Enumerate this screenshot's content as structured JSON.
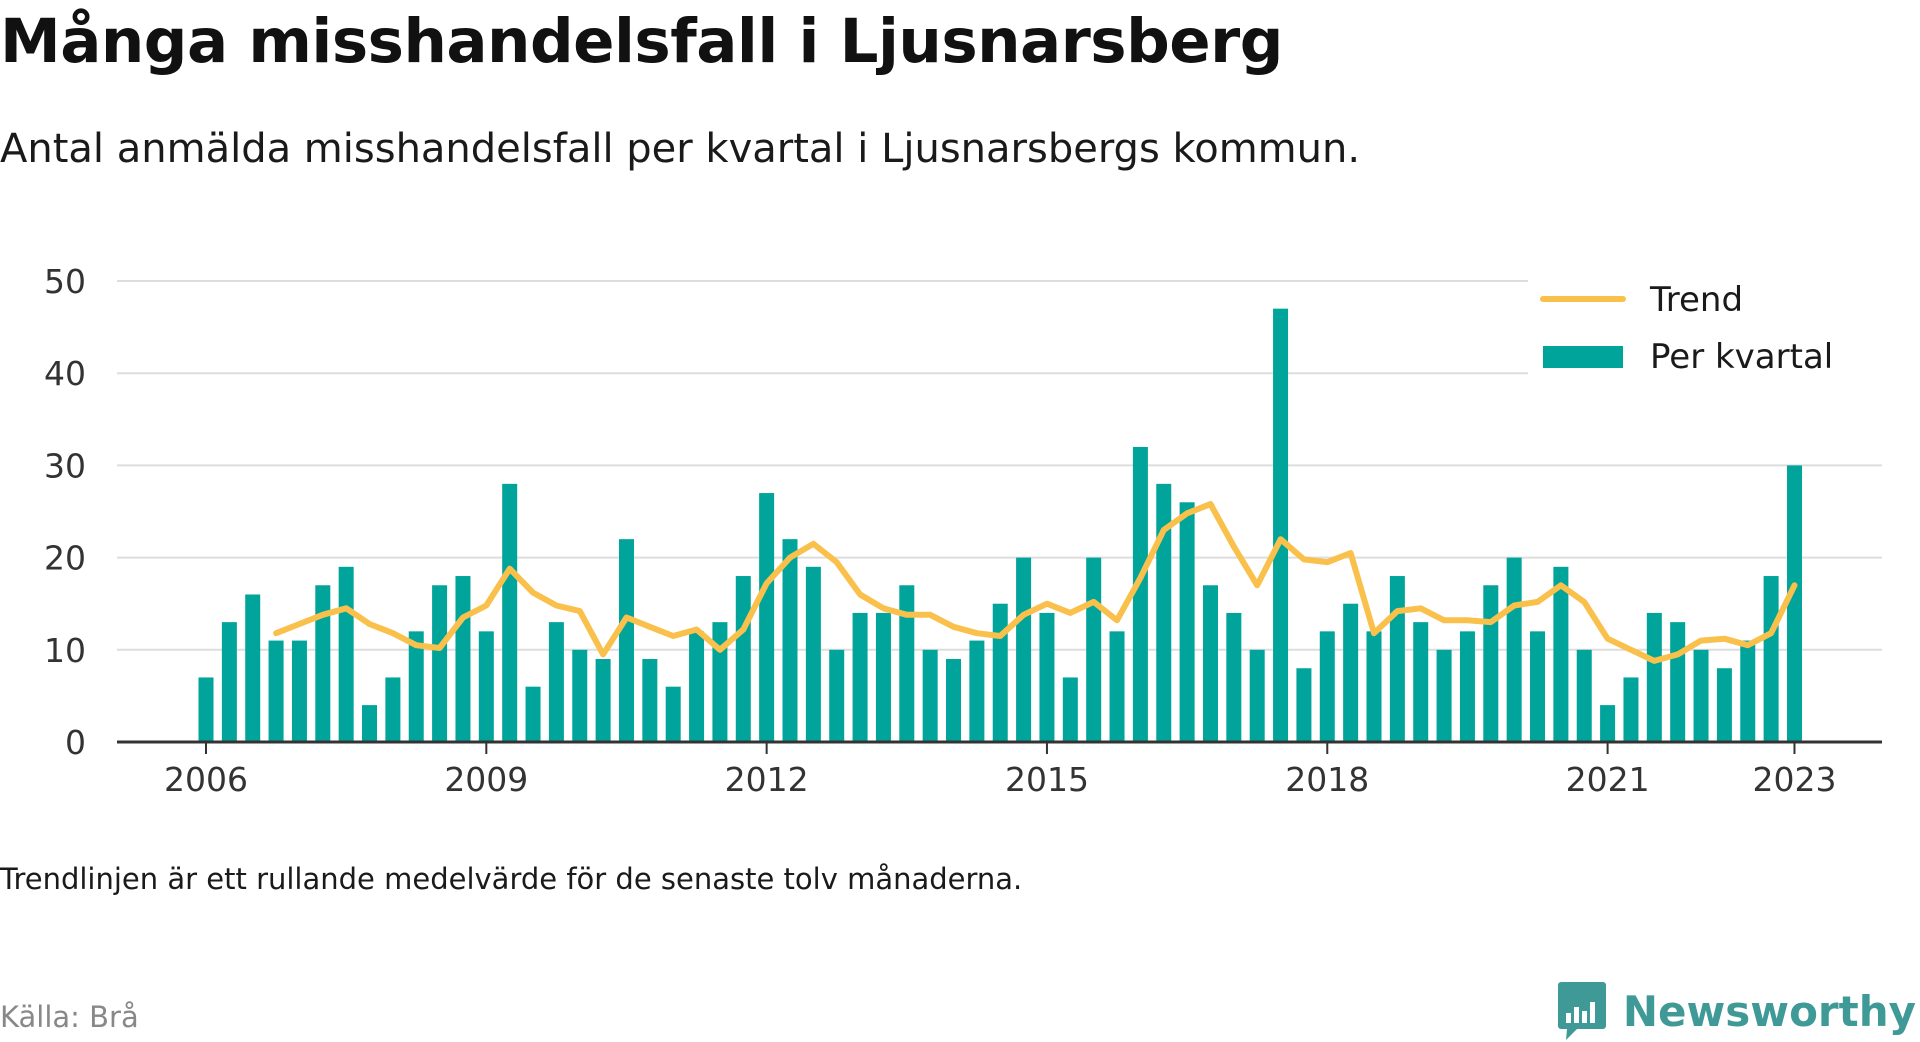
{
  "header": {
    "title": "Många misshandelsfall i Ljusnarsberg",
    "subtitle": "Antal anmälda misshandelsfall per kvartal i Ljusnarsbergs kommun."
  },
  "footer": {
    "note": "Trendlinjen är ett rullande medelvärde för de senaste tolv månaderna.",
    "source": "Källa: Brå",
    "brand": "Newsworthy",
    "brand_icon": "newsworthy-logo-icon"
  },
  "colors": {
    "bar": "#00a49a",
    "trend": "#f9c14c",
    "grid": "#dddddd",
    "axis": "#333333",
    "brand": "#3f9a97"
  },
  "chart_data": {
    "type": "bar",
    "title": "",
    "xlabel": "",
    "ylabel": "",
    "ylim": [
      0,
      50
    ],
    "yticks": [
      0,
      10,
      20,
      30,
      40,
      50
    ],
    "xticks": [
      "2006",
      "2009",
      "2012",
      "2015",
      "2018",
      "2021",
      "2023"
    ],
    "grid": true,
    "legend_position": "top-right",
    "categories": [
      "2006 K1",
      "2006 K2",
      "2006 K3",
      "2006 K4",
      "2007 K1",
      "2007 K2",
      "2007 K3",
      "2007 K4",
      "2008 K1",
      "2008 K2",
      "2008 K3",
      "2008 K4",
      "2009 K1",
      "2009 K2",
      "2009 K3",
      "2009 K4",
      "2010 K1",
      "2010 K2",
      "2010 K3",
      "2010 K4",
      "2011 K1",
      "2011 K2",
      "2011 K3",
      "2011 K4",
      "2012 K1",
      "2012 K2",
      "2012 K3",
      "2012 K4",
      "2013 K1",
      "2013 K2",
      "2013 K3",
      "2013 K4",
      "2014 K1",
      "2014 K2",
      "2014 K3",
      "2014 K4",
      "2015 K1",
      "2015 K2",
      "2015 K3",
      "2015 K4",
      "2016 K1",
      "2016 K2",
      "2016 K3",
      "2016 K4",
      "2017 K1",
      "2017 K2",
      "2017 K3",
      "2017 K4",
      "2018 K1",
      "2018 K2",
      "2018 K3",
      "2018 K4",
      "2019 K1",
      "2019 K2",
      "2019 K3",
      "2019 K4",
      "2020 K1",
      "2020 K2",
      "2020 K3",
      "2020 K4",
      "2021 K1",
      "2021 K2",
      "2021 K3",
      "2021 K4",
      "2022 K1",
      "2022 K2",
      "2022 K3",
      "2022 K4",
      "2023 K1"
    ],
    "series": [
      {
        "name": "Per kvartal",
        "kind": "bar",
        "values": [
          7,
          13,
          16,
          11,
          11,
          17,
          19,
          4,
          7,
          12,
          17,
          18,
          12,
          28,
          6,
          13,
          10,
          9,
          22,
          9,
          6,
          12,
          13,
          18,
          27,
          22,
          19,
          10,
          14,
          14,
          17,
          10,
          9,
          11,
          15,
          20,
          14,
          7,
          20,
          12,
          32,
          28,
          26,
          17,
          14,
          10,
          47,
          8,
          12,
          15,
          12,
          18,
          13,
          10,
          12,
          17,
          20,
          12,
          19,
          10,
          4,
          7,
          14,
          13,
          10,
          8,
          11,
          18,
          30
        ]
      },
      {
        "name": "Trend",
        "kind": "line",
        "values": [
          null,
          null,
          null,
          11.8,
          12.8,
          13.8,
          14.5,
          12.8,
          11.8,
          10.5,
          10.2,
          13.5,
          14.8,
          18.8,
          16.2,
          14.8,
          14.2,
          9.5,
          13.5,
          12.5,
          11.5,
          12.2,
          10,
          12.2,
          17.2,
          20,
          21.5,
          19.5,
          16,
          14.5,
          13.8,
          13.8,
          12.5,
          11.8,
          11.5,
          13.8,
          15,
          14,
          15.2,
          13.2,
          17.8,
          23,
          24.8,
          25.8,
          21.2,
          17,
          22,
          19.8,
          19.5,
          20.5,
          11.8,
          14.2,
          14.5,
          13.2,
          13.2,
          13,
          14.8,
          15.2,
          17,
          15.2,
          11.2,
          10,
          8.8,
          9.5,
          11,
          11.2,
          10.5,
          11.8,
          17
        ]
      }
    ]
  }
}
